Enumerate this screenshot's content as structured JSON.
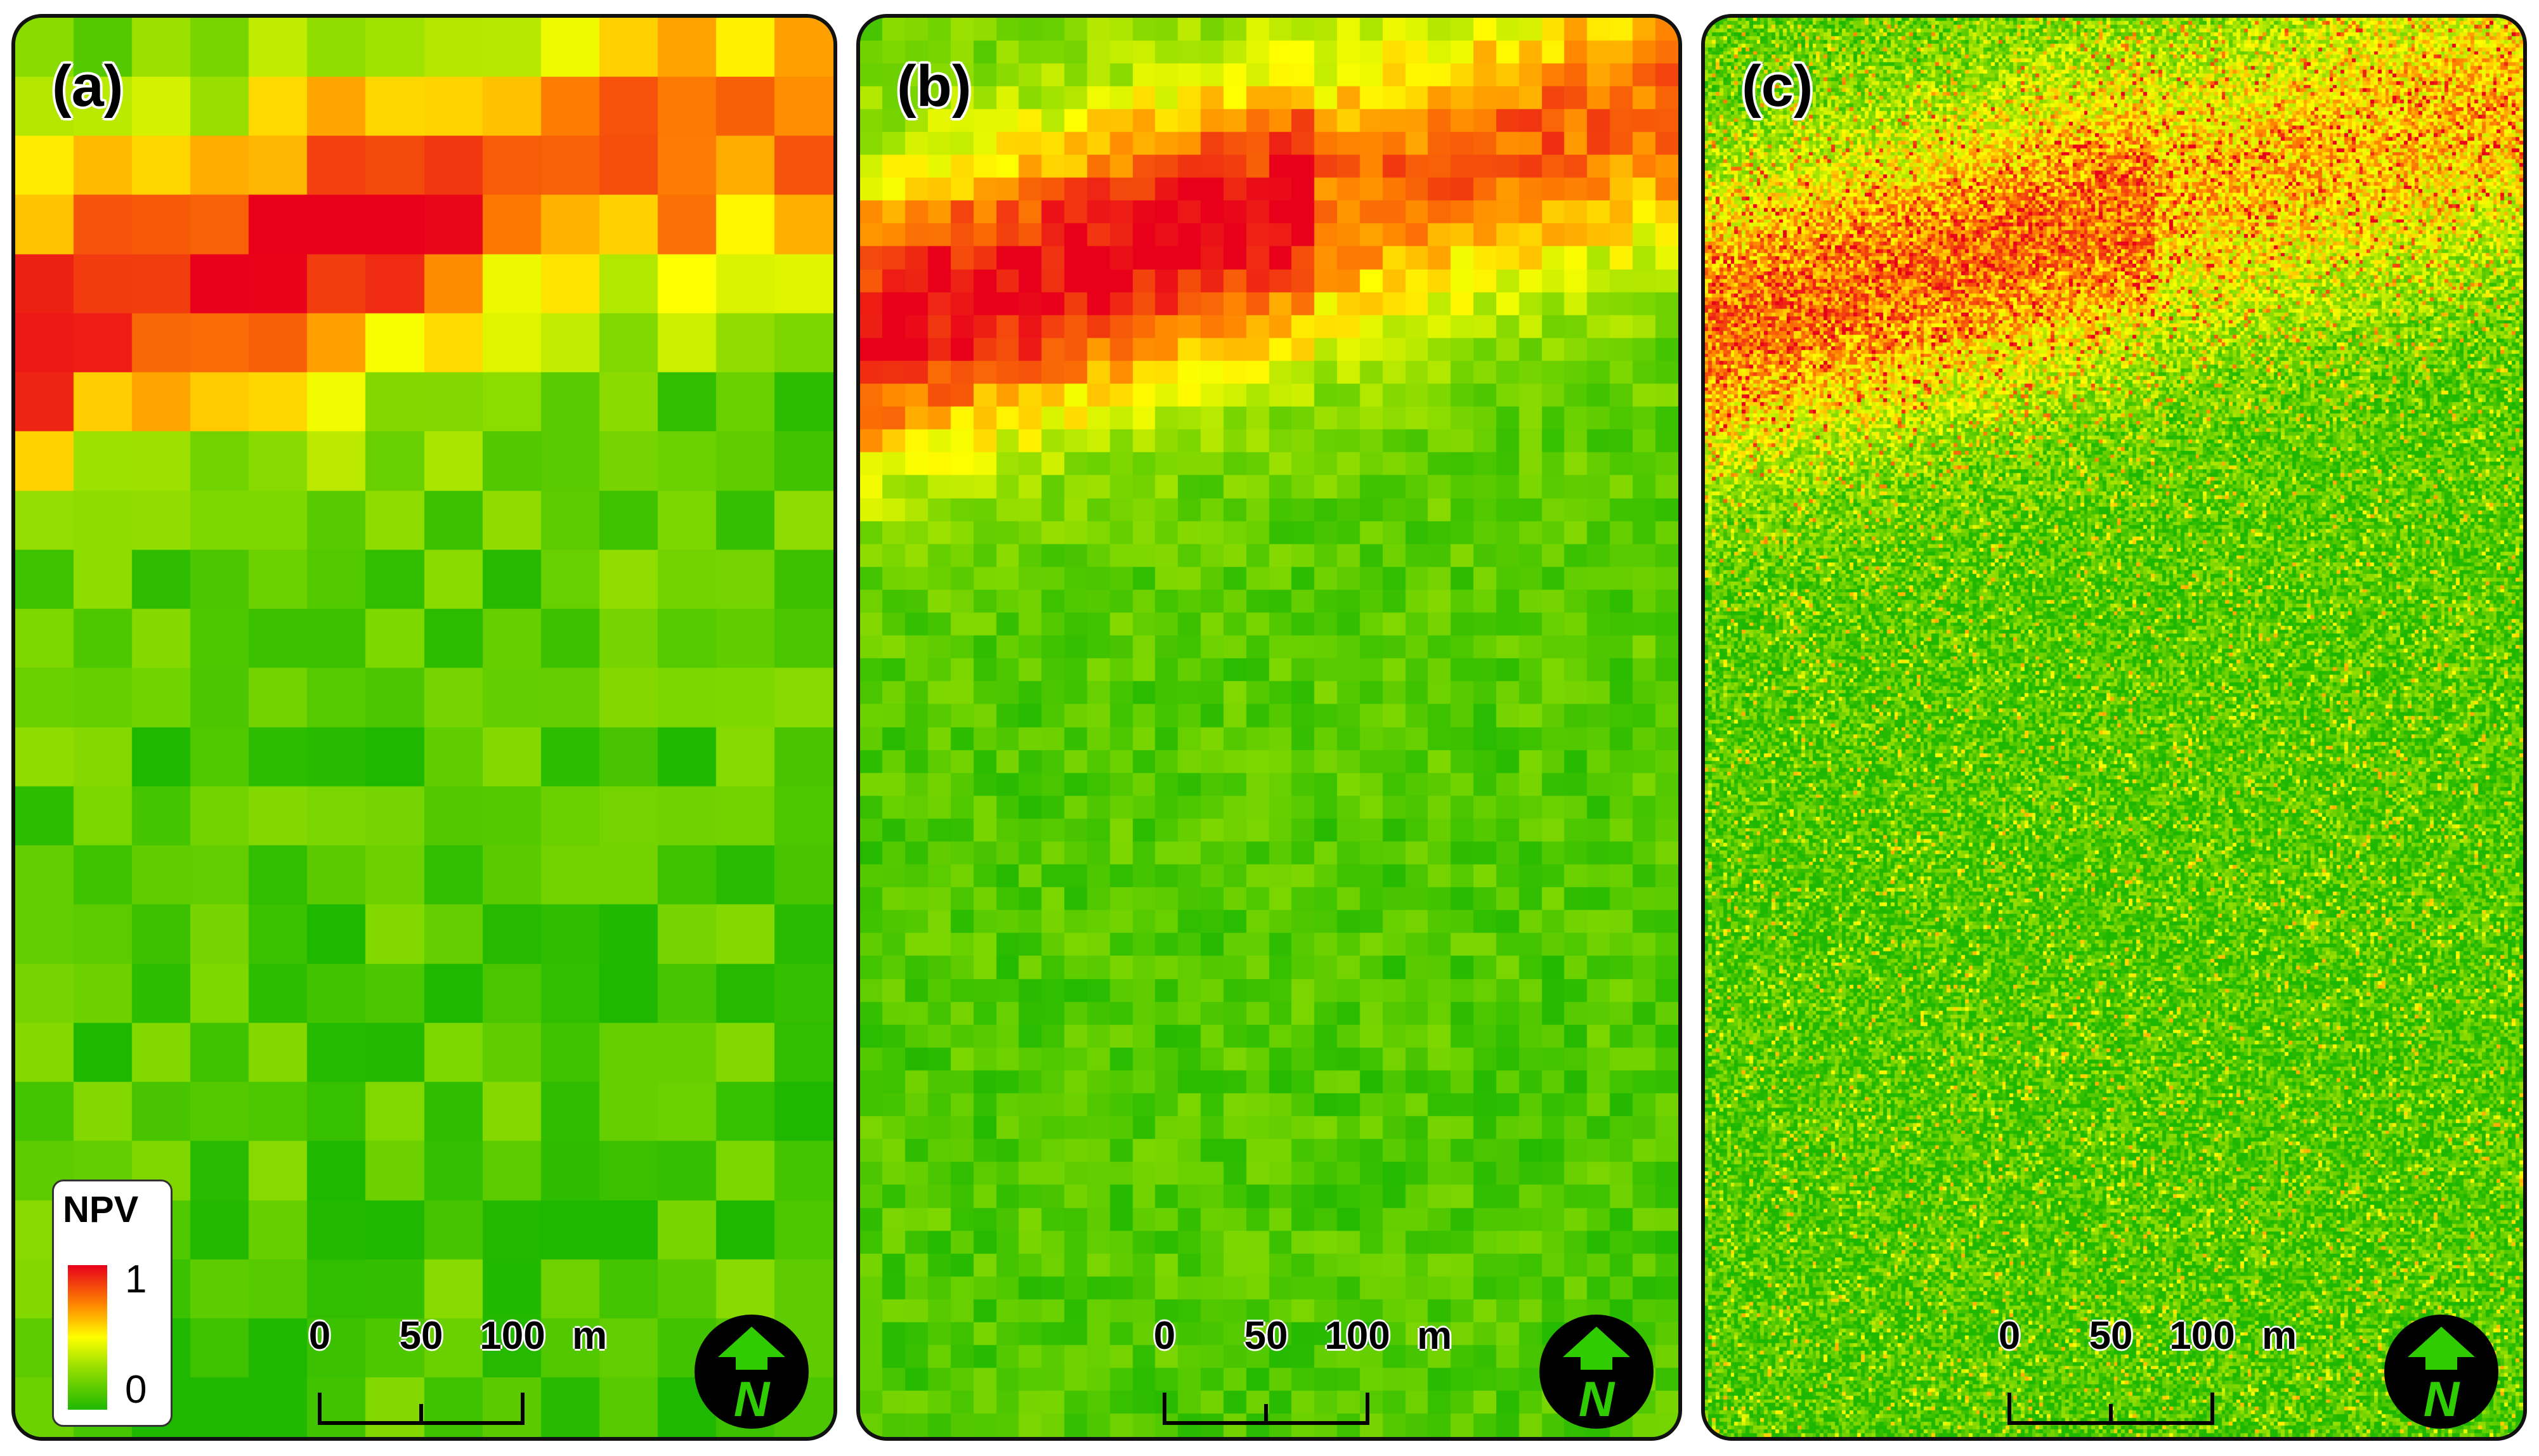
{
  "panels": [
    {
      "id": "a",
      "label": "(a)",
      "grid_cols": 14,
      "grid_rows": 24,
      "style": "coarse"
    },
    {
      "id": "b",
      "label": "(b)",
      "grid_cols": 36,
      "grid_rows": 62,
      "style": "medium"
    },
    {
      "id": "c",
      "label": "(c)",
      "grid_cols": 220,
      "grid_rows": 380,
      "style": "fine"
    }
  ],
  "scale_bar": {
    "ticks": [
      "0",
      "50",
      "100"
    ],
    "unit": "m"
  },
  "legend": {
    "title": "NPV",
    "max_label": "1",
    "min_label": "0"
  },
  "north_arrow": {
    "letter": "N",
    "icon": "north-arrow-icon"
  },
  "colors": {
    "high": "#e8001a",
    "mid_high": "#ff8a00",
    "mid": "#ffff00",
    "mid_low": "#9be000",
    "low": "#1fb800",
    "frame": "#111111"
  }
}
